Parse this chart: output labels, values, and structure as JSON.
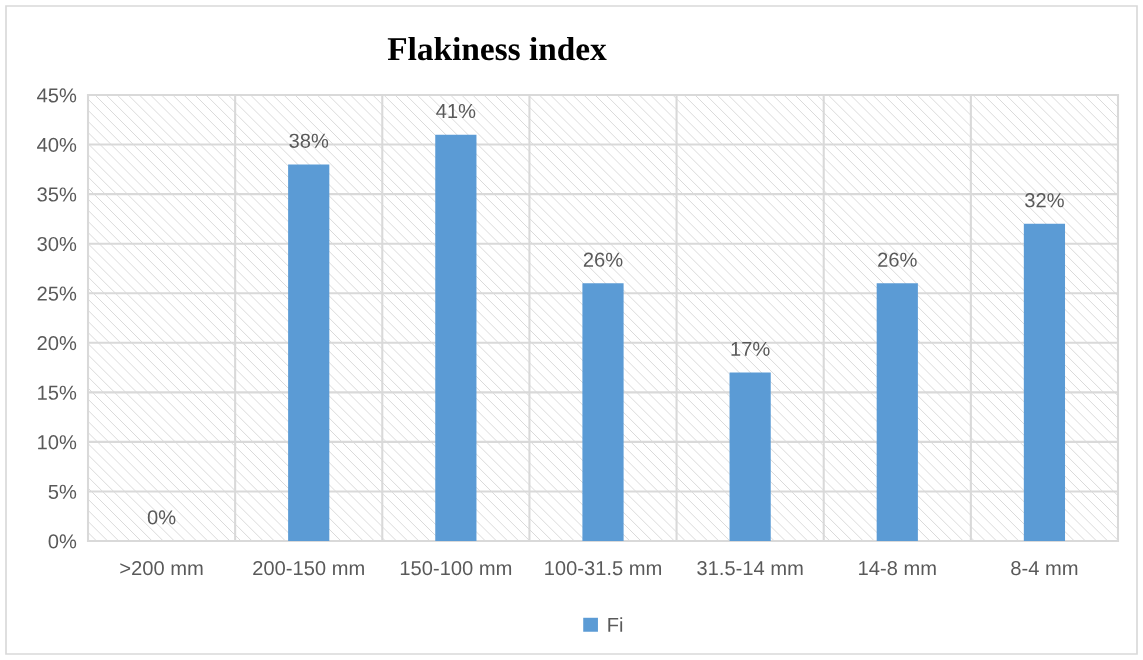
{
  "chart_data": {
    "type": "bar",
    "title": "Flakiness index",
    "categories": [
      ">200 mm",
      "200-150 mm",
      "150-100 mm",
      "100-31.5 mm",
      "31.5-14 mm",
      "14-8 mm",
      "8-4 mm"
    ],
    "series": [
      {
        "name": "Fi",
        "color": "#5b9bd5",
        "values": [
          0,
          38,
          41,
          26,
          17,
          26,
          32
        ],
        "value_labels": [
          "0%",
          "38%",
          "41%",
          "26%",
          "17%",
          "26%",
          "32%"
        ]
      }
    ],
    "ylim": [
      0,
      45
    ],
    "yticks": [
      {
        "value": 0,
        "label": "0%"
      },
      {
        "value": 5,
        "label": "5%"
      },
      {
        "value": 10,
        "label": "10%"
      },
      {
        "value": 15,
        "label": "15%"
      },
      {
        "value": 20,
        "label": "20%"
      },
      {
        "value": 25,
        "label": "25%"
      },
      {
        "value": 30,
        "label": "30%"
      },
      {
        "value": 35,
        "label": "35%"
      },
      {
        "value": 40,
        "label": "40%"
      },
      {
        "value": 45,
        "label": "45%"
      }
    ],
    "grid": true,
    "legend": "bottom"
  }
}
